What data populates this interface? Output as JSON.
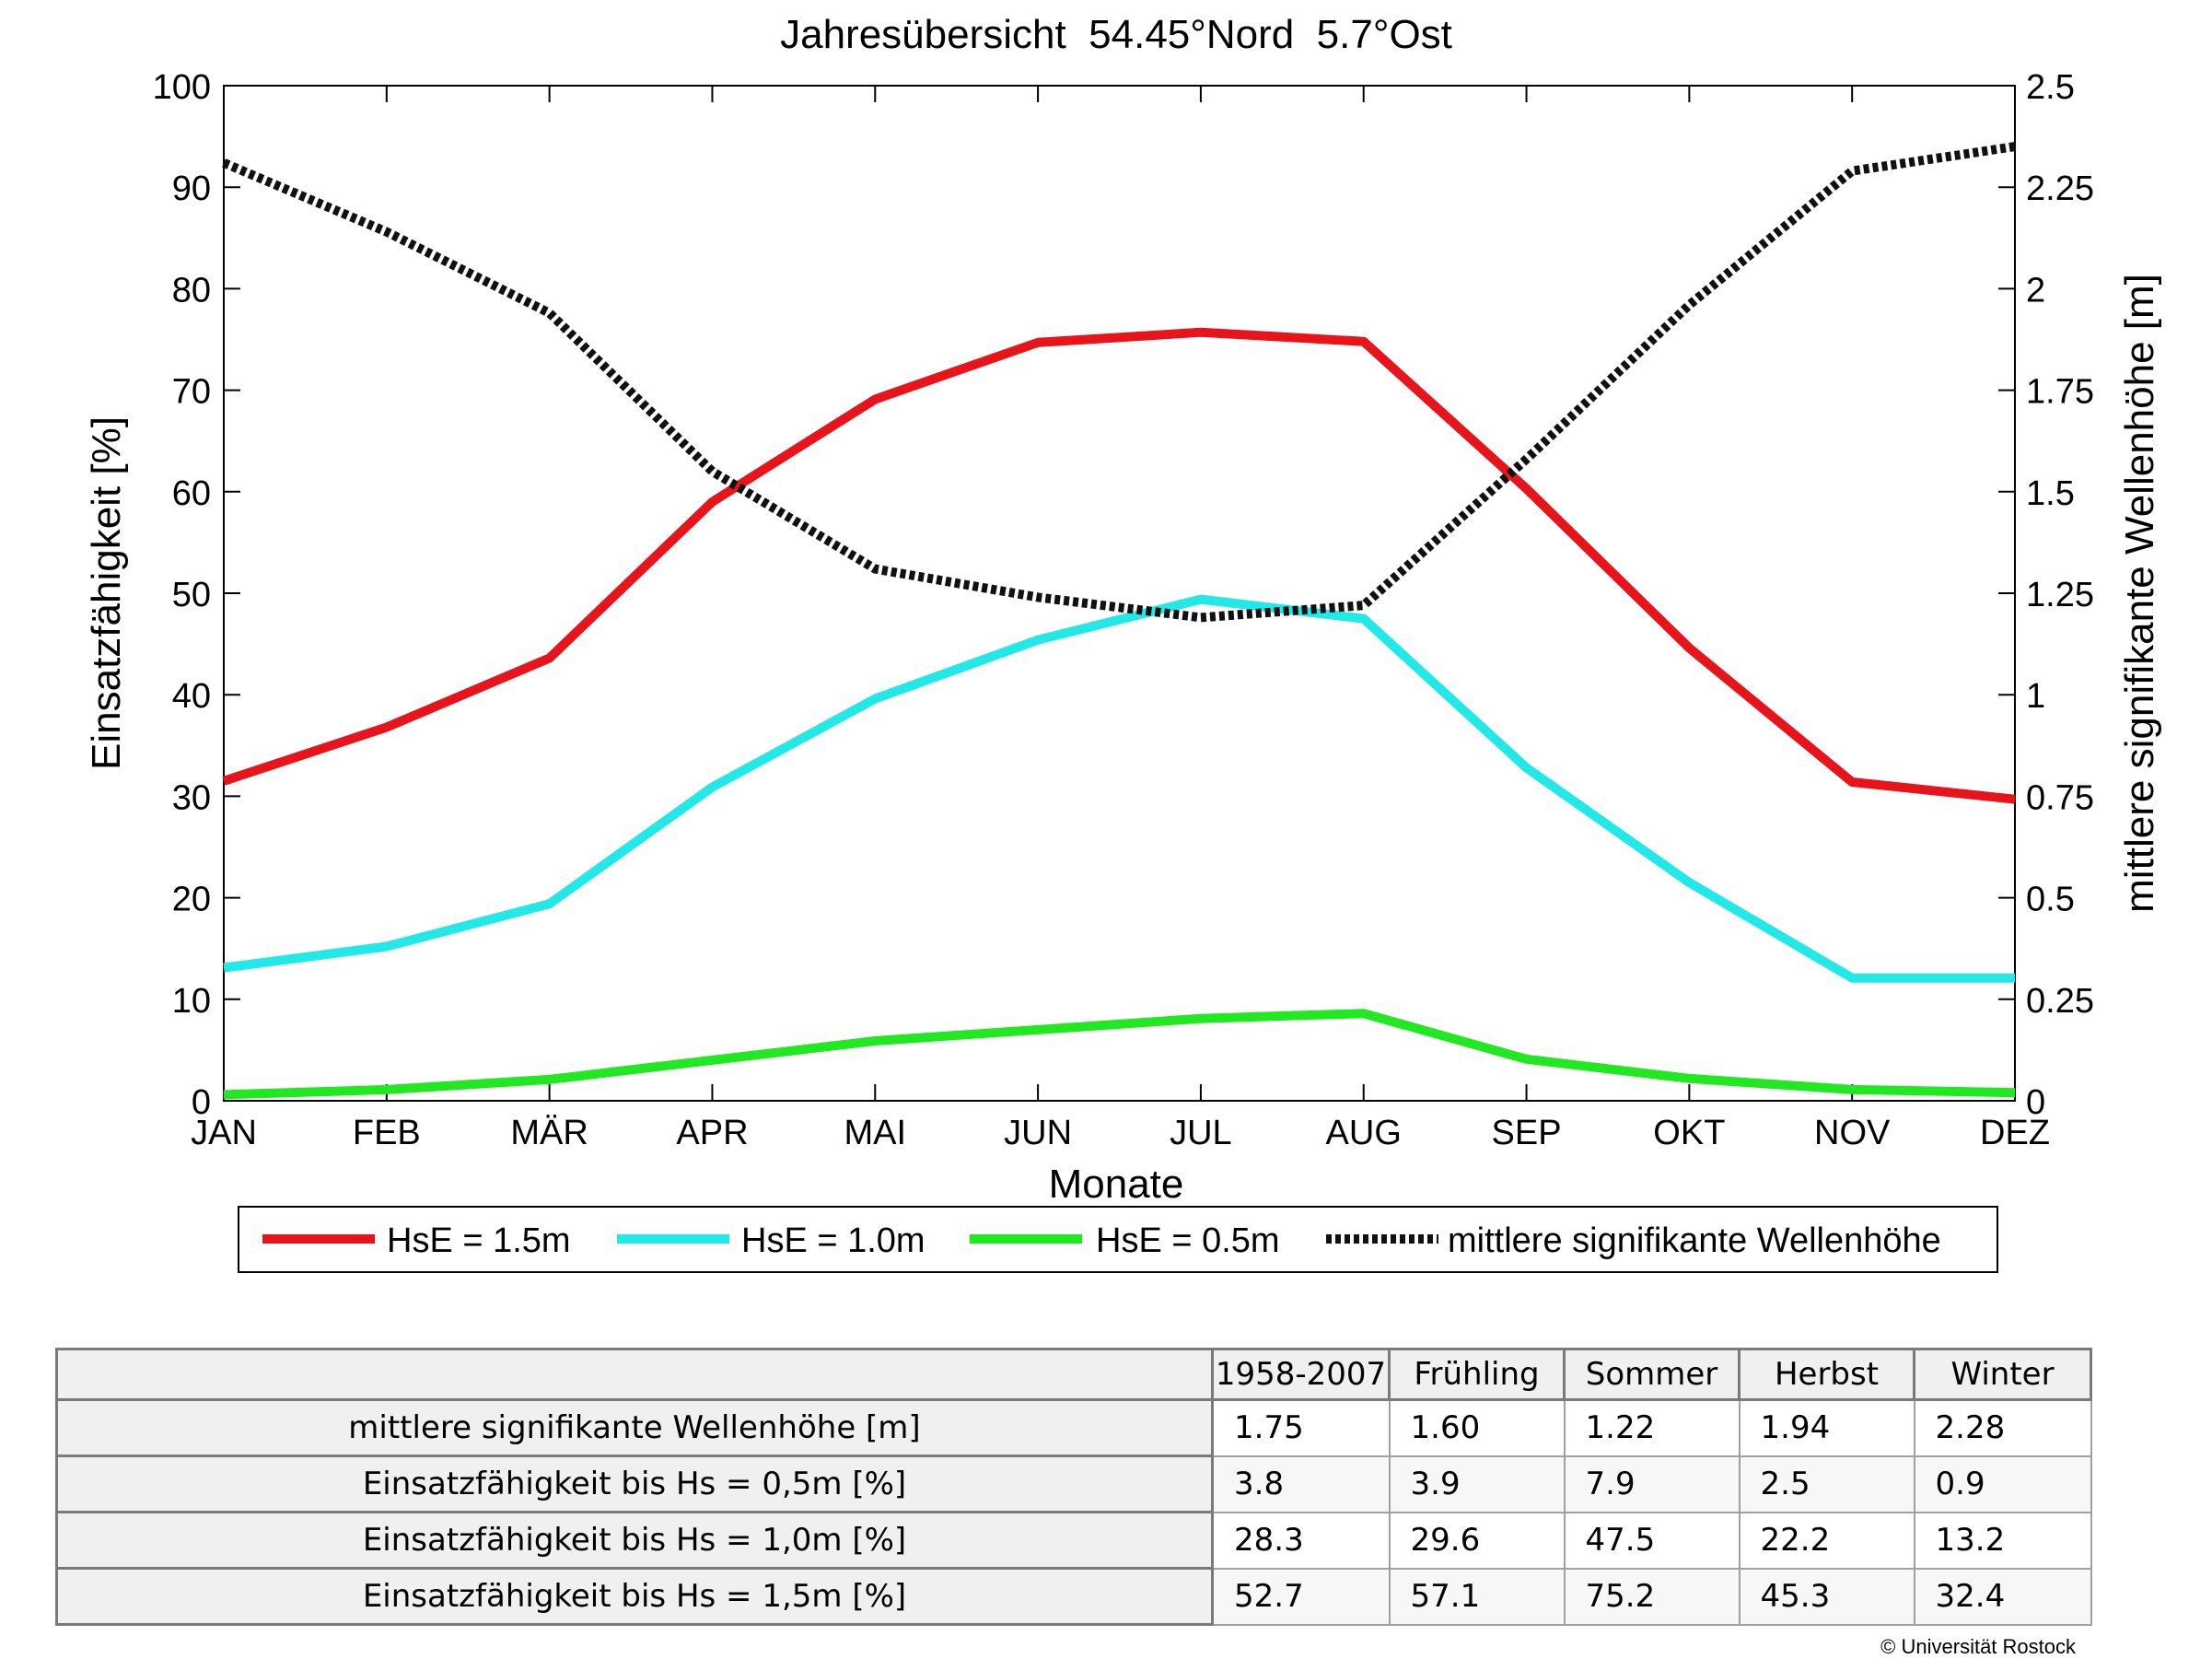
{
  "chart_data": {
    "type": "line",
    "title": "Jahresübersicht  54.45°Nord  5.7°Ost",
    "xlabel": "Monate",
    "ylabel": "Einsatzfähigkeit [%]",
    "y2label": "mittlere signifikante Wellenhöhe [m]",
    "categories": [
      "JAN",
      "FEB",
      "MÄR",
      "APR",
      "MAI",
      "JUN",
      "JUL",
      "AUG",
      "SEP",
      "OKT",
      "NOV",
      "DEZ"
    ],
    "ylim": [
      0,
      100
    ],
    "yticks": [
      0,
      10,
      20,
      30,
      40,
      50,
      60,
      70,
      80,
      90,
      100
    ],
    "y2lim": [
      0,
      2.5
    ],
    "y2ticks": [
      "0",
      "0.25",
      "0.5",
      "0.75",
      "1",
      "1.25",
      "1.5",
      "1.75",
      "2",
      "2.25",
      "2.5"
    ],
    "grid": false,
    "legend_position": "bottom",
    "series": [
      {
        "name": "HsE = 1.5m",
        "axis": "left",
        "color": "#e8141c",
        "style": "solid",
        "values": [
          31.5,
          36.8,
          43.6,
          59.0,
          69.1,
          74.7,
          75.7,
          74.8,
          60.3,
          44.6,
          31.4,
          29.7
        ]
      },
      {
        "name": "HsE = 1.0m",
        "axis": "left",
        "color": "#22e8e8",
        "style": "solid",
        "values": [
          13.1,
          15.2,
          19.4,
          30.9,
          39.6,
          45.4,
          49.4,
          47.5,
          32.8,
          21.5,
          12.1,
          12.1
        ]
      },
      {
        "name": "HsE = 0.5m",
        "axis": "left",
        "color": "#22e822",
        "style": "solid",
        "values": [
          0.6,
          1.1,
          2.1,
          4.0,
          5.9,
          7.0,
          8.1,
          8.6,
          4.1,
          2.2,
          1.1,
          0.8
        ]
      },
      {
        "name": "mittlere signifikante Wellenhöhe",
        "axis": "right",
        "color": "#111111",
        "style": "dotted",
        "values": [
          2.31,
          2.14,
          1.94,
          1.55,
          1.31,
          1.24,
          1.19,
          1.22,
          1.58,
          1.96,
          2.29,
          2.35
        ]
      }
    ]
  },
  "table": {
    "columns": [
      "1958-2007",
      "Frühling",
      "Sommer",
      "Herbst",
      "Winter"
    ],
    "rows": [
      {
        "label": "mittlere signifikante Wellenhöhe [m]",
        "values": [
          "1.75",
          "1.60",
          "1.22",
          "1.94",
          "2.28"
        ]
      },
      {
        "label": "Einsatzfähigkeit bis Hs = 0,5m [%]",
        "values": [
          "3.8",
          "3.9",
          "7.9",
          "2.5",
          "0.9"
        ]
      },
      {
        "label": "Einsatzfähigkeit bis Hs = 1,0m [%]",
        "values": [
          "28.3",
          "29.6",
          "47.5",
          "22.2",
          "13.2"
        ]
      },
      {
        "label": "Einsatzfähigkeit bis Hs = 1,5m [%]",
        "values": [
          "52.7",
          "57.1",
          "75.2",
          "45.3",
          "32.4"
        ]
      }
    ]
  },
  "footer": {
    "copyright": "© Universität Rostock"
  }
}
